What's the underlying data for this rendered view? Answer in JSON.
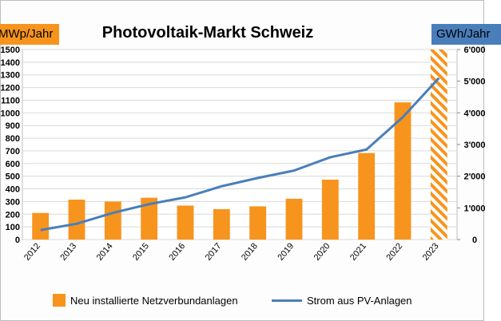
{
  "header": {
    "title": "Photovoltaik-Markt Schweiz",
    "left_unit": "MWp/Jahr",
    "right_unit": "GWh/Jahr"
  },
  "colors": {
    "bar": "#f7941d",
    "line": "#4a7ebb",
    "unit_left_bg": "#f7941d",
    "unit_right_bg": "#4a7ebb",
    "grid": "#d9d9d9"
  },
  "legend": {
    "bar_label": "Neu installierte Netzverbundanlagen",
    "line_label": "Strom aus PV-Anlagen"
  },
  "chart_data": {
    "type": "bar",
    "categories": [
      "2012",
      "2013",
      "2014",
      "2015",
      "2016",
      "2017",
      "2018",
      "2019",
      "2020",
      "2021",
      "2022",
      "2023"
    ],
    "series": [
      {
        "name": "Neu installierte Netzverbundanlagen",
        "kind": "bar",
        "axis": "left",
        "values": [
          210,
          315,
          300,
          330,
          268,
          240,
          262,
          322,
          473,
          683,
          1083,
          null
        ],
        "hatched_last": true
      },
      {
        "name": "Strom aus PV-Anlagen",
        "kind": "line",
        "axis": "right",
        "values": [
          300,
          500,
          842,
          1119,
          1333,
          1683,
          1944,
          2178,
          2599,
          2842,
          3860,
          5100
        ]
      }
    ],
    "y_left": {
      "ylim": [
        0,
        1500
      ],
      "ticks": [
        "0",
        "100",
        "200",
        "300",
        "400",
        "500",
        "600",
        "700",
        "800",
        "900",
        "1000",
        "1100",
        "1200",
        "1300",
        "1400",
        "1500"
      ]
    },
    "y_right": {
      "ylim": [
        0,
        6000
      ],
      "ticks": [
        "0",
        "1'000",
        "2'000",
        "3'000",
        "4'000",
        "5'000",
        "6'000"
      ]
    },
    "grid": true,
    "legend_position": "bottom"
  }
}
